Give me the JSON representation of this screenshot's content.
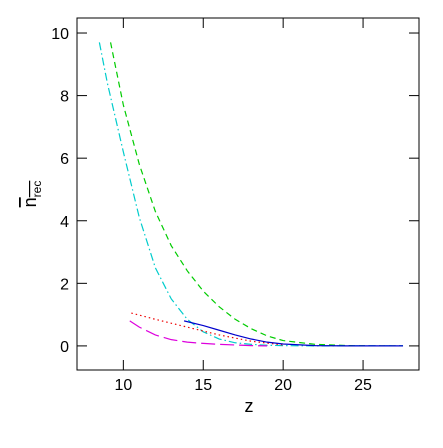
{
  "chart_data": {
    "type": "line",
    "xlabel": "z",
    "ylabel": "n",
    "ylabel_subscript": "rec",
    "xlim": [
      7.1,
      28.5
    ],
    "ylim": [
      -0.77,
      10.48
    ],
    "xticks": [
      10,
      15,
      20,
      25
    ],
    "yticks": [
      0,
      2,
      4,
      6,
      8,
      10
    ],
    "series": [
      {
        "color": "#00cc00",
        "style": "dashed",
        "x": [
          9.2,
          10,
          11,
          12,
          13,
          14,
          15,
          16,
          17,
          18,
          19,
          20,
          22,
          24,
          26,
          27.5
        ],
        "values": [
          9.7,
          7.7,
          5.8,
          4.3,
          3.2,
          2.4,
          1.75,
          1.25,
          0.85,
          0.55,
          0.32,
          0.17,
          0.05,
          0.01,
          0,
          0
        ]
      },
      {
        "color": "#00cccc",
        "style": "dashdot",
        "x": [
          8.5,
          9,
          10,
          11,
          12,
          13,
          14,
          15,
          16,
          17,
          18,
          19,
          20,
          22,
          24,
          26,
          27.5
        ],
        "values": [
          9.7,
          8.4,
          6.2,
          4.1,
          2.5,
          1.5,
          0.85,
          0.45,
          0.22,
          0.1,
          0.05,
          0.02,
          0.01,
          0,
          0,
          0,
          0
        ]
      },
      {
        "color": "#ee0000",
        "style": "dotted",
        "x": [
          10.5,
          12,
          14,
          16,
          18,
          20
        ],
        "values": [
          1.05,
          0.85,
          0.6,
          0.35,
          0.15,
          0.03
        ]
      },
      {
        "color": "#0000cc",
        "style": "solid",
        "x": [
          13.8,
          15,
          16,
          17,
          18,
          19,
          20,
          22,
          24,
          27.5
        ],
        "values": [
          0.8,
          0.65,
          0.5,
          0.35,
          0.22,
          0.12,
          0.06,
          0.01,
          0,
          0
        ]
      },
      {
        "color": "#dd00dd",
        "style": "longdash",
        "x": [
          10.4,
          11,
          12,
          13,
          14,
          15,
          16,
          17,
          18,
          19
        ],
        "values": [
          0.8,
          0.6,
          0.35,
          0.2,
          0.12,
          0.08,
          0.05,
          0.03,
          0.01,
          0
        ]
      }
    ]
  }
}
